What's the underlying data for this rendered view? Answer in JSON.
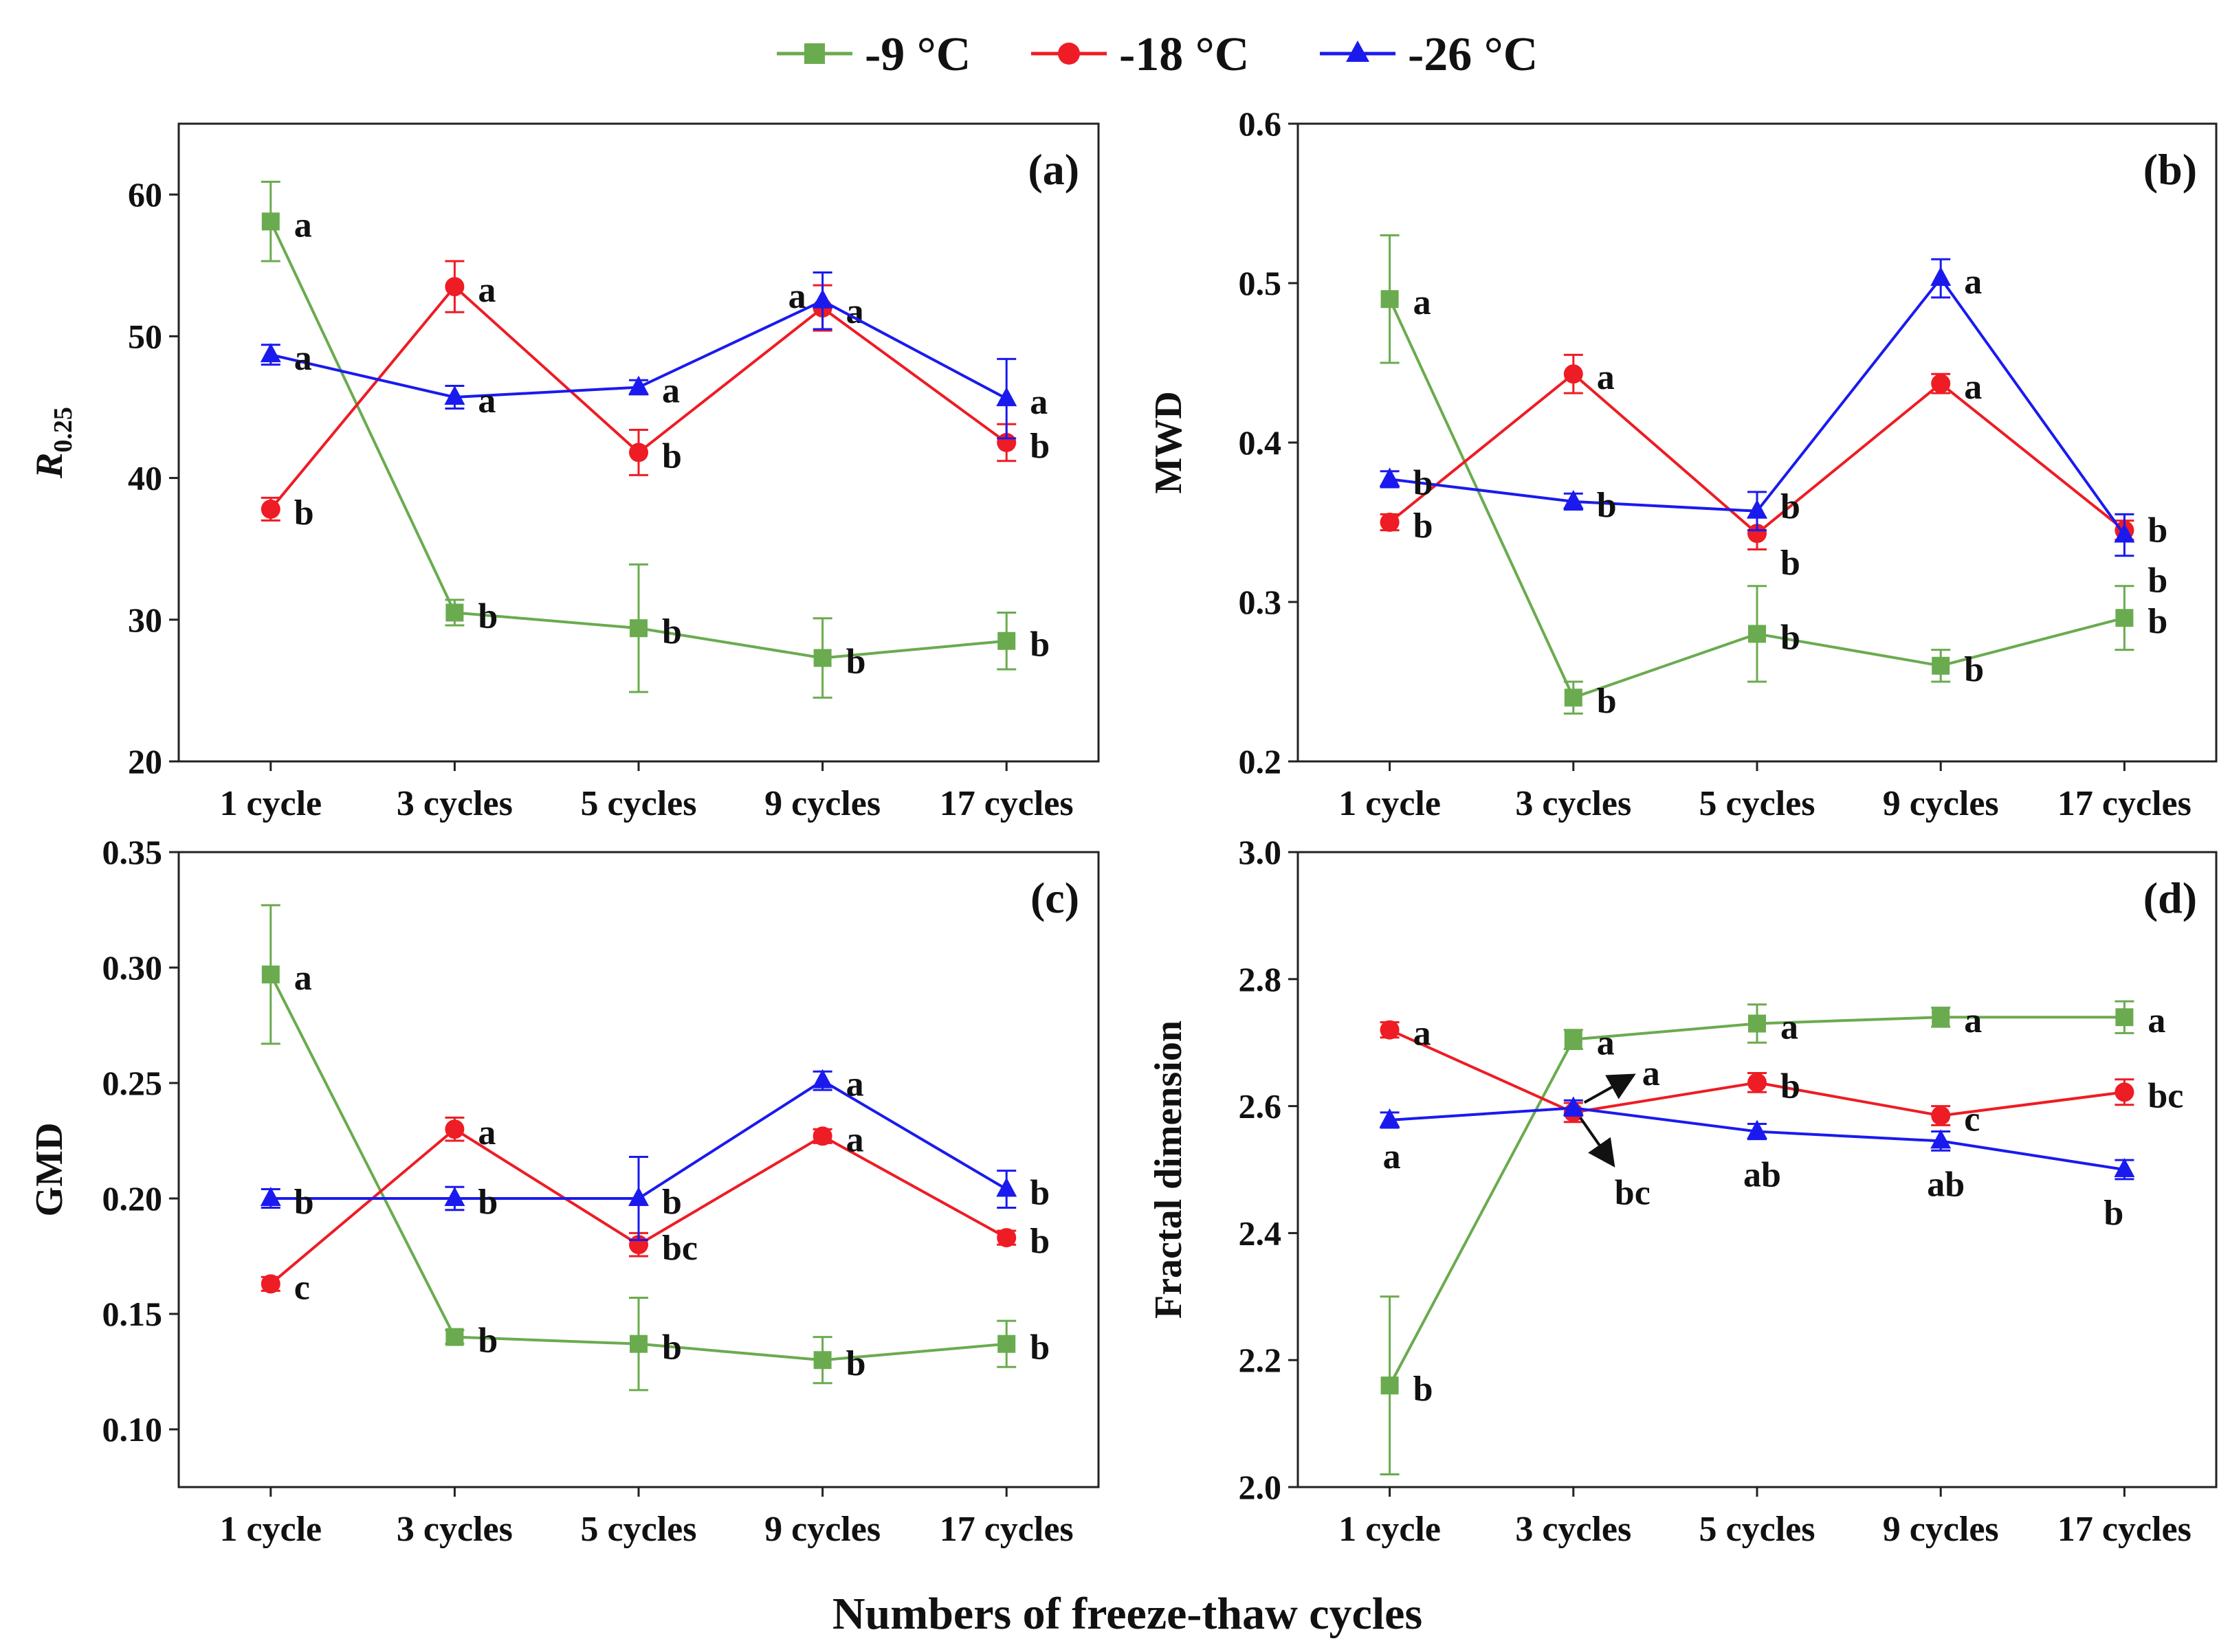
{
  "figure": {
    "xlabel": "Numbers of freeze-thaw cycles",
    "legend": [
      {
        "name": "-9 °C",
        "color": "#6aab4f",
        "marker": "square"
      },
      {
        "name": "-18 °C",
        "color": "#ee1c24",
        "marker": "circle"
      },
      {
        "name": "-26 °C",
        "color": "#1a1aef",
        "marker": "triangle"
      }
    ]
  },
  "chart_data": [
    {
      "type": "line",
      "panel_label": "(a)",
      "ylabel_main": "R",
      "ylabel_sub": "0.25",
      "ylim": [
        20,
        65
      ],
      "yticks": [
        20,
        30,
        40,
        50,
        60
      ],
      "ytick_labels": [
        "20",
        "30",
        "40",
        "50",
        "60"
      ],
      "categories": [
        "1 cycle",
        "3 cycles",
        "5 cycles",
        "9 cycles",
        "17 cycles"
      ],
      "series": [
        {
          "name": "-9 °C",
          "color": "#6aab4f",
          "marker": "square",
          "values": [
            58.1,
            30.5,
            29.4,
            27.3,
            28.5
          ],
          "errors": [
            2.8,
            0.9,
            4.5,
            2.8,
            2.0
          ],
          "letters": [
            "a",
            "b",
            "b",
            "b",
            "b"
          ]
        },
        {
          "name": "-18 °C",
          "color": "#ee1c24",
          "marker": "circle",
          "values": [
            37.8,
            53.5,
            41.8,
            52.0,
            42.5
          ],
          "errors": [
            0.8,
            1.8,
            1.6,
            1.6,
            1.3
          ],
          "letters": [
            "b",
            "a",
            "b",
            "a",
            "b"
          ]
        },
        {
          "name": "-26 °C",
          "color": "#1a1aef",
          "marker": "triangle",
          "values": [
            48.7,
            45.7,
            46.4,
            52.5,
            45.6
          ],
          "errors": [
            0.7,
            0.8,
            0.5,
            2.0,
            2.8
          ],
          "letters": [
            "a",
            "a",
            "a",
            "a",
            "a"
          ]
        }
      ]
    },
    {
      "type": "line",
      "panel_label": "(b)",
      "ylabel_main": "MWD",
      "ylabel_sub": "",
      "ylim": [
        0.2,
        0.6
      ],
      "yticks": [
        0.2,
        0.3,
        0.4,
        0.5,
        0.6
      ],
      "ytick_labels": [
        "0.2",
        "0.3",
        "0.4",
        "0.5",
        "0.6"
      ],
      "categories": [
        "1 cycle",
        "3 cycles",
        "5 cycles",
        "9 cycles",
        "17 cycles"
      ],
      "series": [
        {
          "name": "-9 °C",
          "color": "#6aab4f",
          "marker": "square",
          "values": [
            0.49,
            0.24,
            0.28,
            0.26,
            0.29
          ],
          "errors": [
            0.04,
            0.01,
            0.03,
            0.01,
            0.02
          ],
          "letters": [
            "a",
            "b",
            "b",
            "b",
            "b"
          ]
        },
        {
          "name": "-18 °C",
          "color": "#ee1c24",
          "marker": "circle",
          "values": [
            0.35,
            0.443,
            0.343,
            0.437,
            0.345
          ],
          "errors": [
            0.005,
            0.012,
            0.01,
            0.006,
            0.006
          ],
          "letters": [
            "b",
            "a",
            "b",
            "a",
            "b"
          ]
        },
        {
          "name": "-26 °C",
          "color": "#1a1aef",
          "marker": "triangle",
          "values": [
            0.377,
            0.363,
            0.357,
            0.503,
            0.342
          ],
          "errors": [
            0.005,
            0.005,
            0.012,
            0.012,
            0.013
          ],
          "letters": [
            "b",
            "b",
            "b",
            "a",
            "b"
          ]
        }
      ]
    },
    {
      "type": "line",
      "panel_label": "(c)",
      "ylabel_main": "GMD",
      "ylabel_sub": "",
      "ylim": [
        0.075,
        0.35
      ],
      "yticks": [
        0.1,
        0.15,
        0.2,
        0.25,
        0.3,
        0.35
      ],
      "ytick_labels": [
        "0.10",
        "0.15",
        "0.20",
        "0.25",
        "0.30",
        "0.35"
      ],
      "categories": [
        "1 cycle",
        "3 cycles",
        "5 cycles",
        "9 cycles",
        "17 cycles"
      ],
      "series": [
        {
          "name": "-9 °C",
          "color": "#6aab4f",
          "marker": "square",
          "values": [
            0.297,
            0.14,
            0.137,
            0.13,
            0.137
          ],
          "errors": [
            0.03,
            0.003,
            0.02,
            0.01,
            0.01
          ],
          "letters": [
            "a",
            "b",
            "b",
            "b",
            "b"
          ]
        },
        {
          "name": "-18 °C",
          "color": "#ee1c24",
          "marker": "circle",
          "values": [
            0.163,
            0.23,
            0.18,
            0.227,
            0.183
          ],
          "errors": [
            0.003,
            0.005,
            0.005,
            0.003,
            0.003
          ],
          "letters": [
            "c",
            "a",
            "bc",
            "a",
            "b"
          ]
        },
        {
          "name": "-26 °C",
          "color": "#1a1aef",
          "marker": "triangle",
          "values": [
            0.2,
            0.2,
            0.2,
            0.251,
            0.204
          ],
          "errors": [
            0.004,
            0.005,
            0.018,
            0.004,
            0.008
          ],
          "letters": [
            "b",
            "b",
            "b",
            "a",
            "b"
          ]
        }
      ]
    },
    {
      "type": "line",
      "panel_label": "(d)",
      "ylabel_main": "Fractal dimension",
      "ylabel_sub": "",
      "ylim": [
        2.0,
        3.0
      ],
      "yticks": [
        2.0,
        2.2,
        2.4,
        2.6,
        2.8,
        3.0
      ],
      "ytick_labels": [
        "2.0",
        "2.2",
        "2.4",
        "2.6",
        "2.8",
        "3.0"
      ],
      "categories": [
        "1 cycle",
        "3 cycles",
        "5 cycles",
        "9 cycles",
        "17 cycles"
      ],
      "series": [
        {
          "name": "-9 °C",
          "color": "#6aab4f",
          "marker": "square",
          "values": [
            2.16,
            2.705,
            2.73,
            2.74,
            2.74
          ],
          "errors": [
            0.14,
            0.015,
            0.03,
            0.015,
            0.025
          ],
          "letters": [
            "b",
            "a",
            "a",
            "a",
            "a"
          ]
        },
        {
          "name": "-18 °C",
          "color": "#ee1c24",
          "marker": "circle",
          "values": [
            2.72,
            2.59,
            2.637,
            2.585,
            2.622
          ],
          "errors": [
            0.012,
            0.015,
            0.015,
            0.015,
            0.02
          ],
          "letters": [
            "a",
            "a",
            "b",
            "c",
            "bc"
          ]
        },
        {
          "name": "-26 °C",
          "color": "#1a1aef",
          "marker": "triangle",
          "values": [
            2.578,
            2.597,
            2.56,
            2.545,
            2.5
          ],
          "errors": [
            0.012,
            0.012,
            0.012,
            0.015,
            0.015
          ],
          "letters": [
            "a",
            "bc",
            "ab",
            "ab",
            "b"
          ]
        }
      ]
    }
  ]
}
